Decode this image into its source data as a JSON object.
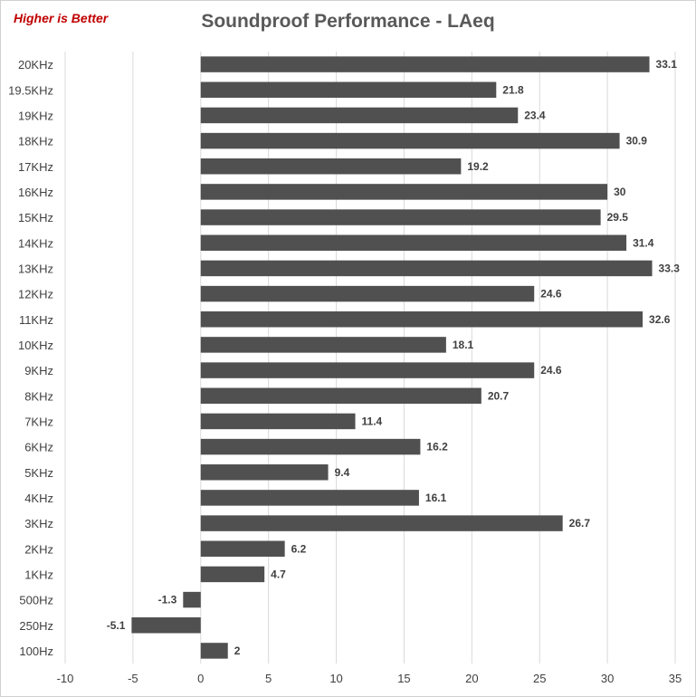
{
  "note": "Higher is Better",
  "chart_data": {
    "type": "bar",
    "orientation": "horizontal",
    "title": "Soundproof Performance - LAeq",
    "categories": [
      "20KHz",
      "19.5KHz",
      "19KHz",
      "18KHz",
      "17KHz",
      "16KHz",
      "15KHz",
      "14KHz",
      "13KHz",
      "12KHz",
      "11KHz",
      "10KHz",
      "9KHz",
      "8KHz",
      "7KHz",
      "6KHz",
      "5KHz",
      "4KHz",
      "3KHz",
      "2KHz",
      "1KHz",
      "500Hz",
      "250Hz",
      "100Hz"
    ],
    "values": [
      33.1,
      21.8,
      23.4,
      30.9,
      19.2,
      30,
      29.5,
      31.4,
      33.3,
      24.6,
      32.6,
      18.1,
      24.6,
      20.7,
      11.4,
      16.2,
      9.4,
      16.1,
      26.7,
      6.2,
      4.7,
      -1.3,
      -5.1,
      2
    ],
    "xlim": [
      -10,
      35
    ],
    "xticks": [
      -10,
      -5,
      0,
      5,
      10,
      15,
      20,
      25,
      30,
      35
    ],
    "grid": "vertical",
    "legend": "none",
    "bar_color": "#505050",
    "grid_color": "#d9d9d9"
  }
}
